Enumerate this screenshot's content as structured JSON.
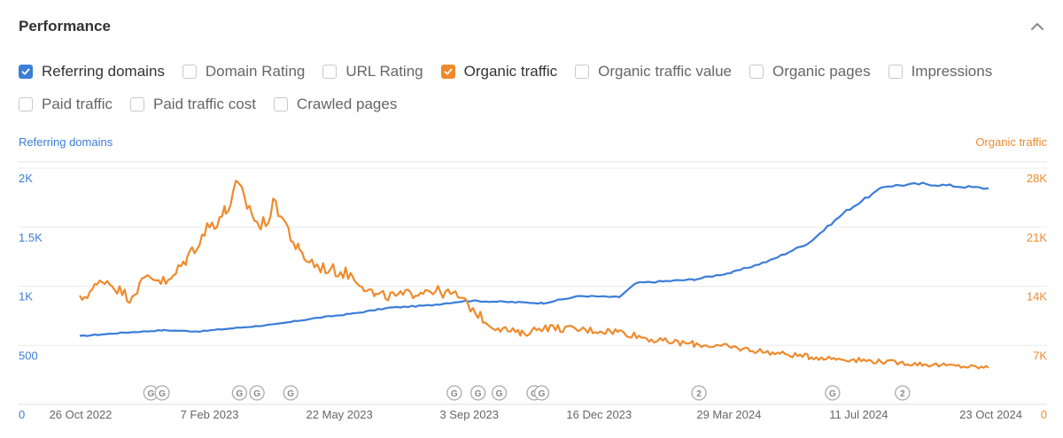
{
  "header": {
    "title": "Performance"
  },
  "metrics": [
    {
      "label": "Referring domains",
      "checked": true,
      "color": "#3b7dd8"
    },
    {
      "label": "Domain Rating",
      "checked": false
    },
    {
      "label": "URL Rating",
      "checked": false
    },
    {
      "label": "Organic traffic",
      "checked": true,
      "color": "#ef8a2c"
    },
    {
      "label": "Organic traffic value",
      "checked": false
    },
    {
      "label": "Organic pages",
      "checked": false
    },
    {
      "label": "Impressions",
      "checked": false
    },
    {
      "label": "Paid traffic",
      "checked": false
    },
    {
      "label": "Paid traffic cost",
      "checked": false
    },
    {
      "label": "Crawled pages",
      "checked": false
    }
  ],
  "chart_data": {
    "type": "line",
    "left_axis_label": "Referring domains",
    "right_axis_label": "Organic traffic",
    "x_ticks": [
      "26 Oct 2022",
      "7 Feb 2023",
      "22 May 2023",
      "3 Sep 2023",
      "16 Dec 2023",
      "29 Mar 2024",
      "11 Jul 2024",
      "23 Oct 2024"
    ],
    "xlim": [
      "2022-10-26",
      "2024-10-23"
    ],
    "left_ticks": [
      "0",
      "500",
      "1K",
      "1.5K",
      "2K"
    ],
    "left_ylim": [
      0,
      2000
    ],
    "right_ticks": [
      "0",
      "7K",
      "14K",
      "21K",
      "28K"
    ],
    "right_ylim": [
      0,
      28000
    ],
    "grid": true,
    "series": [
      {
        "name": "Referring domains",
        "color": "#3b7dd8",
        "axis": "left",
        "points": [
          [
            "2022-10-26",
            660
          ],
          [
            "2022-12-01",
            690
          ],
          [
            "2023-01-01",
            710
          ],
          [
            "2023-01-30",
            700
          ],
          [
            "2023-03-01",
            730
          ],
          [
            "2023-04-01",
            760
          ],
          [
            "2023-05-01",
            810
          ],
          [
            "2023-06-01",
            850
          ],
          [
            "2023-07-01",
            900
          ],
          [
            "2023-08-01",
            920
          ],
          [
            "2023-09-01",
            960
          ],
          [
            "2023-10-01",
            950
          ],
          [
            "2023-11-01",
            940
          ],
          [
            "2023-12-01",
            1000
          ],
          [
            "2024-01-01",
            990
          ],
          [
            "2024-01-15",
            1110
          ],
          [
            "2024-03-01",
            1140
          ],
          [
            "2024-04-01",
            1200
          ],
          [
            "2024-05-01",
            1300
          ],
          [
            "2024-06-01",
            1450
          ],
          [
            "2024-07-01",
            1720
          ],
          [
            "2024-08-01",
            1930
          ],
          [
            "2024-09-01",
            1950
          ],
          [
            "2024-10-23",
            1910
          ]
        ]
      },
      {
        "name": "Organic traffic",
        "color": "#ef8a2c",
        "axis": "right",
        "points": [
          [
            "2022-10-26",
            13500
          ],
          [
            "2022-11-15",
            16000
          ],
          [
            "2022-12-05",
            13800
          ],
          [
            "2022-12-20",
            16500
          ],
          [
            "2023-01-05",
            15500
          ],
          [
            "2023-01-20",
            18500
          ],
          [
            "2023-02-05",
            22000
          ],
          [
            "2023-02-20",
            24000
          ],
          [
            "2023-03-01",
            27000
          ],
          [
            "2023-03-20",
            22000
          ],
          [
            "2023-04-01",
            25000
          ],
          [
            "2023-04-20",
            19000
          ],
          [
            "2023-05-05",
            17500
          ],
          [
            "2023-06-01",
            16500
          ],
          [
            "2023-06-20",
            14000
          ],
          [
            "2023-07-10",
            14000
          ],
          [
            "2023-08-01",
            14800
          ],
          [
            "2023-08-25",
            14000
          ],
          [
            "2023-09-20",
            10500
          ],
          [
            "2023-10-15",
            9500
          ],
          [
            "2023-11-01",
            10300
          ],
          [
            "2023-12-01",
            10000
          ],
          [
            "2024-01-01",
            9800
          ],
          [
            "2024-02-01",
            8700
          ],
          [
            "2024-03-01",
            8300
          ],
          [
            "2024-04-01",
            7900
          ],
          [
            "2024-05-01",
            7300
          ],
          [
            "2024-06-01",
            6800
          ],
          [
            "2024-07-01",
            6500
          ],
          [
            "2024-08-01",
            6200
          ],
          [
            "2024-09-01",
            5900
          ],
          [
            "2024-10-23",
            5500
          ]
        ]
      }
    ],
    "annotations": [
      {
        "date": "2022-12-22",
        "label": "G"
      },
      {
        "date": "2022-12-31",
        "label": "G"
      },
      {
        "date": "2023-03-03",
        "label": "G"
      },
      {
        "date": "2023-03-17",
        "label": "G"
      },
      {
        "date": "2023-04-13",
        "label": "G"
      },
      {
        "date": "2023-08-22",
        "label": "G"
      },
      {
        "date": "2023-09-10",
        "label": "G"
      },
      {
        "date": "2023-09-27",
        "label": "G"
      },
      {
        "date": "2023-10-25",
        "label": "G"
      },
      {
        "date": "2023-10-31",
        "label": "G"
      },
      {
        "date": "2024-03-05",
        "label": "2"
      },
      {
        "date": "2024-06-20",
        "label": "G"
      },
      {
        "date": "2024-08-15",
        "label": "2"
      }
    ]
  }
}
